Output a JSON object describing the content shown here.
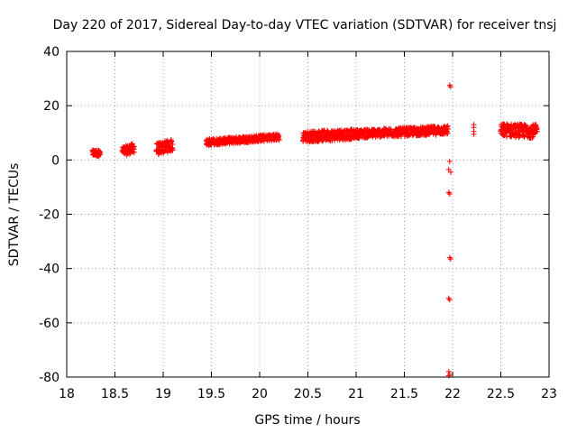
{
  "chart_data": {
    "type": "scatter",
    "title": "Day 220 of 2017, Sidereal Day-to-day VTEC variation (SDTVAR) for receiver tnsj",
    "xlabel": "GPS time / hours",
    "ylabel": "SDTVAR / TECUs",
    "xlim": [
      18,
      23
    ],
    "ylim": [
      -80,
      40
    ],
    "xticks": [
      18,
      18.5,
      19,
      19.5,
      20,
      20.5,
      21,
      21.5,
      22,
      22.5,
      23
    ],
    "yticks": [
      -80,
      -60,
      -40,
      -20,
      0,
      20,
      40
    ],
    "xtick_labels": [
      "18",
      "18.5",
      "19",
      "19.5",
      "20",
      "20.5",
      "21",
      "21.5",
      "22",
      "22.5",
      "23"
    ],
    "ytick_labels": [
      "-80",
      "-60",
      "-40",
      "-20",
      "0",
      "20",
      "40"
    ],
    "grid": true,
    "grid_style": "dotted",
    "marker": "plus",
    "series_color": "#ff0000",
    "series": [
      {
        "name": "SDTVAR",
        "segments": [
          {
            "x_start": 18.27,
            "x_end": 18.35,
            "y_start": 2.5,
            "y_end": 2.5,
            "spread": 1.2
          },
          {
            "x_start": 18.58,
            "x_end": 18.7,
            "y_start": 3.0,
            "y_end": 4.5,
            "spread": 1.8
          },
          {
            "x_start": 18.93,
            "x_end": 19.1,
            "y_start": 4.0,
            "y_end": 5.5,
            "spread": 2.2
          },
          {
            "x_start": 19.45,
            "x_end": 20.2,
            "y_start": 6.5,
            "y_end": 8.5,
            "spread": 1.2
          },
          {
            "x_start": 20.45,
            "x_end": 20.95,
            "y_start": 8.5,
            "y_end": 9.5,
            "spread": 2.0
          },
          {
            "x_start": 20.95,
            "x_end": 21.95,
            "y_start": 9.5,
            "y_end": 11.0,
            "spread": 1.6
          },
          {
            "x_start": 22.5,
            "x_end": 22.88,
            "y_start": 11.0,
            "y_end": 10.5,
            "spread": 2.5
          }
        ],
        "points": [
          {
            "x": 21.97,
            "y": 27.5
          },
          {
            "x": 21.98,
            "y": 27.0
          },
          {
            "x": 21.97,
            "y": -0.5
          },
          {
            "x": 21.96,
            "y": -3.5
          },
          {
            "x": 21.98,
            "y": -4.5
          },
          {
            "x": 21.96,
            "y": -12.0
          },
          {
            "x": 21.97,
            "y": -12.5
          },
          {
            "x": 21.97,
            "y": -36.0
          },
          {
            "x": 21.98,
            "y": -36.5
          },
          {
            "x": 21.96,
            "y": -51.0
          },
          {
            "x": 21.97,
            "y": -51.5
          },
          {
            "x": 21.96,
            "y": -78.0
          },
          {
            "x": 21.97,
            "y": -79.0
          },
          {
            "x": 21.96,
            "y": -79.5
          },
          {
            "x": 22.22,
            "y": 13.0
          },
          {
            "x": 22.22,
            "y": 12.0
          },
          {
            "x": 22.22,
            "y": 10.5
          },
          {
            "x": 22.22,
            "y": 9.5
          }
        ]
      }
    ]
  }
}
